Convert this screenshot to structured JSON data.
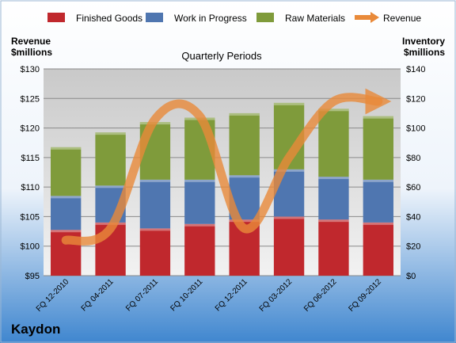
{
  "company": "Kaydon",
  "chart_data": {
    "type": "bar",
    "subtitle": "Quarterly Periods",
    "stacked": true,
    "categories": [
      "FQ 12-2010",
      "FQ 04-2011",
      "FQ 07-2011",
      "FQ 10-2011",
      "FQ 12-2011",
      "FQ 03-2012",
      "FQ 06-2012",
      "FQ 09-2012"
    ],
    "left_axis": {
      "label_line1": "Revenue",
      "label_line2": "$millions",
      "range": [
        95,
        130
      ],
      "ticks": [
        "$95",
        "$100",
        "$105",
        "$110",
        "$115",
        "$120",
        "$125",
        "$130"
      ]
    },
    "right_axis": {
      "label_line1": "Inventory",
      "label_line2": "$millions",
      "range": [
        0,
        140
      ],
      "ticks": [
        "$0",
        "$20",
        "$40",
        "$60",
        "$80",
        "$100",
        "$120",
        "$140"
      ]
    },
    "series": [
      {
        "name": "Finished Goods",
        "axis": "right",
        "color": "#c0282d",
        "values": [
          31,
          36,
          32,
          35,
          38,
          40,
          38,
          36
        ]
      },
      {
        "name": "Work in Progress",
        "axis": "right",
        "color": "#4f76b0",
        "values": [
          23,
          25,
          33,
          30,
          30,
          32,
          29,
          29
        ]
      },
      {
        "name": "Raw Materials",
        "axis": "right",
        "color": "#7f9b3b",
        "values": [
          33,
          36,
          39,
          42,
          42,
          45,
          46,
          43
        ]
      },
      {
        "name": "Revenue",
        "axis": "left",
        "type": "line",
        "color": "#e98a3a",
        "values": [
          101,
          103,
          121.5,
          122,
          103,
          115,
          124.5,
          124.5
        ]
      }
    ],
    "legend_position": "top",
    "grid": true
  }
}
